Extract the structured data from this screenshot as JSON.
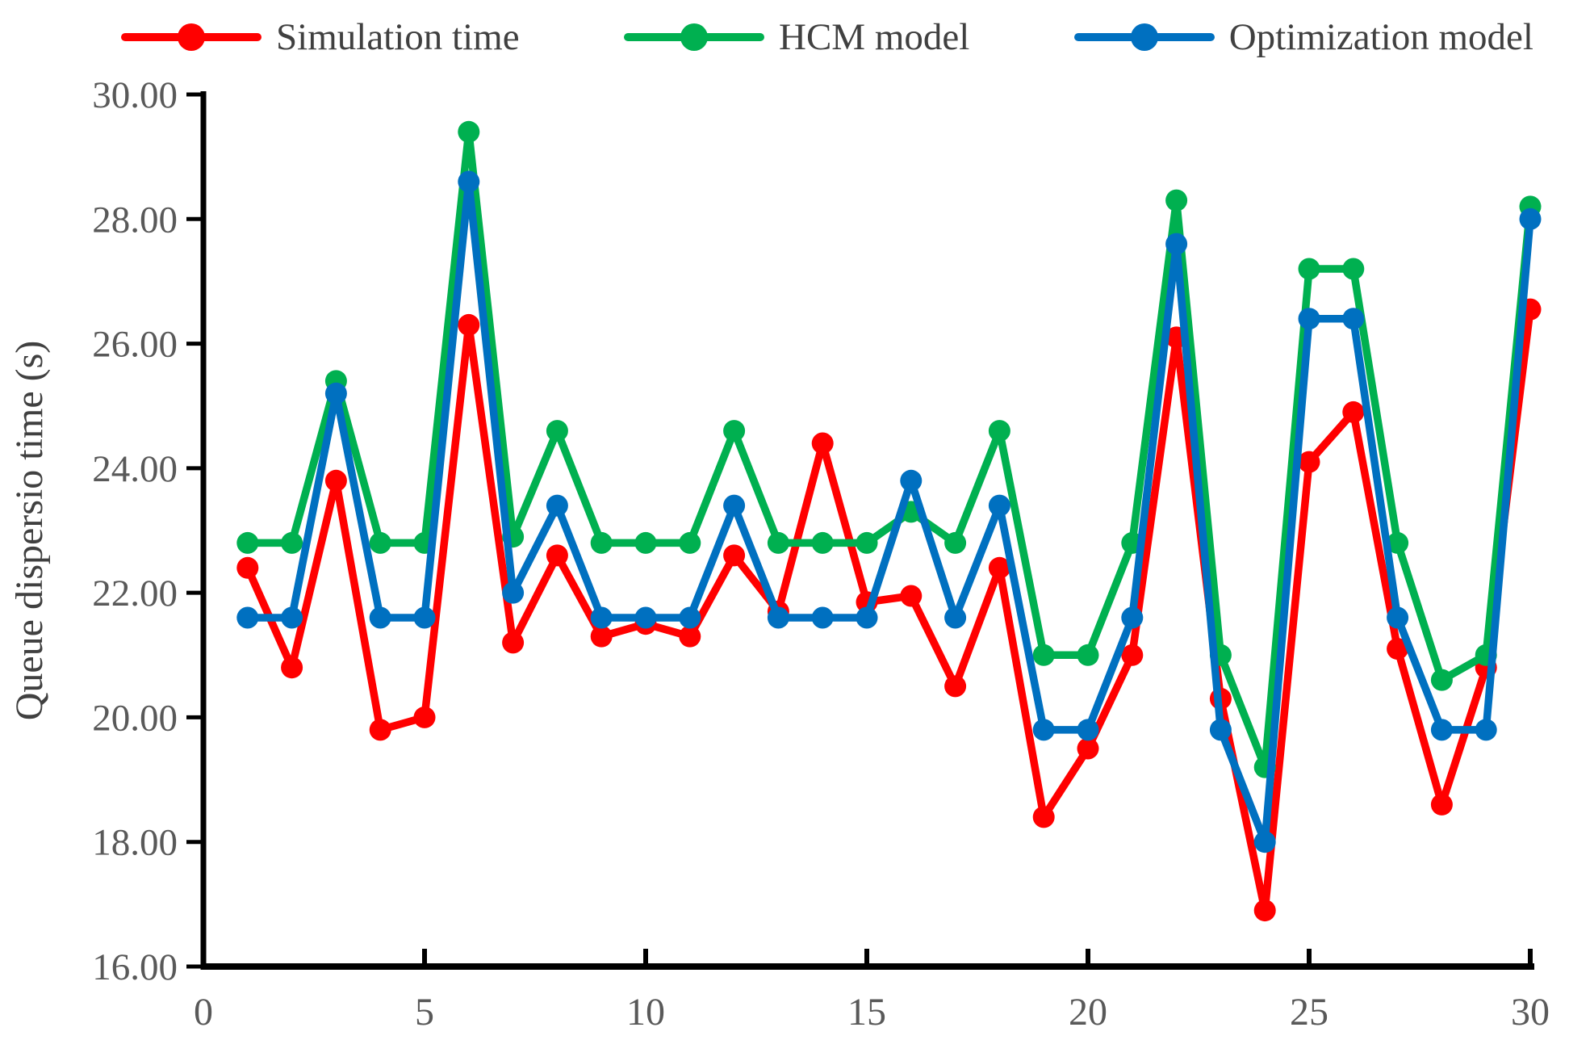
{
  "legend": {
    "items": [
      {
        "label": "Simulation time",
        "color": "#FF0000"
      },
      {
        "label": "HCM model",
        "color": "#00B050"
      },
      {
        "label": "Optimization model",
        "color": "#0070C0"
      }
    ]
  },
  "axes": {
    "y_title": "Queue dispersio time (s)",
    "y_tick_labels": [
      "16.00",
      "18.00",
      "20.00",
      "22.00",
      "24.00",
      "26.00",
      "28.00",
      "30.00"
    ],
    "y_tick_values": [
      16,
      18,
      20,
      22,
      24,
      26,
      28,
      30
    ],
    "x_tick_labels": [
      "0",
      "5",
      "10",
      "15",
      "20",
      "25",
      "30"
    ],
    "x_tick_values": [
      0,
      5,
      10,
      15,
      20,
      25,
      30
    ],
    "text_color": "#595959",
    "axis_color": "#000000"
  },
  "chart_data": {
    "type": "line",
    "title": "",
    "xlabel": "",
    "ylabel": "Queue dispersio time (s)",
    "xlim": [
      0,
      30
    ],
    "ylim": [
      16,
      30
    ],
    "grid": false,
    "legend_position": "top",
    "x": [
      1,
      2,
      3,
      4,
      5,
      6,
      7,
      8,
      9,
      10,
      11,
      12,
      13,
      14,
      15,
      16,
      17,
      18,
      19,
      20,
      21,
      22,
      23,
      24,
      25,
      26,
      27,
      28,
      29,
      30
    ],
    "series": [
      {
        "name": "Simulation time",
        "color": "#FF0000",
        "values": [
          22.4,
          20.8,
          23.8,
          19.8,
          20.0,
          26.3,
          21.2,
          22.6,
          21.3,
          21.5,
          21.3,
          22.6,
          21.7,
          24.4,
          21.85,
          21.95,
          20.5,
          22.4,
          18.4,
          19.5,
          21.0,
          26.1,
          20.3,
          16.9,
          24.1,
          24.9,
          21.1,
          18.6,
          20.8,
          26.55
        ]
      },
      {
        "name": "HCM model",
        "color": "#00B050",
        "values": [
          22.8,
          22.8,
          25.4,
          22.8,
          22.8,
          29.4,
          22.9,
          24.6,
          22.8,
          22.8,
          22.8,
          24.6,
          22.8,
          22.8,
          22.8,
          23.3,
          22.8,
          24.6,
          21.0,
          21.0,
          22.8,
          28.3,
          21.0,
          19.2,
          27.2,
          27.2,
          22.8,
          20.6,
          21.0,
          28.2
        ]
      },
      {
        "name": "Optimization model",
        "color": "#0070C0",
        "values": [
          21.6,
          21.6,
          25.2,
          21.6,
          21.6,
          28.6,
          22.0,
          23.4,
          21.6,
          21.6,
          21.6,
          23.4,
          21.6,
          21.6,
          21.6,
          23.8,
          21.6,
          23.4,
          19.8,
          19.8,
          21.6,
          27.6,
          19.8,
          18.0,
          26.4,
          26.4,
          21.6,
          19.8,
          19.8,
          28.0
        ]
      }
    ]
  },
  "style": {
    "line_width": 9.5,
    "marker_radius": 13.5
  }
}
